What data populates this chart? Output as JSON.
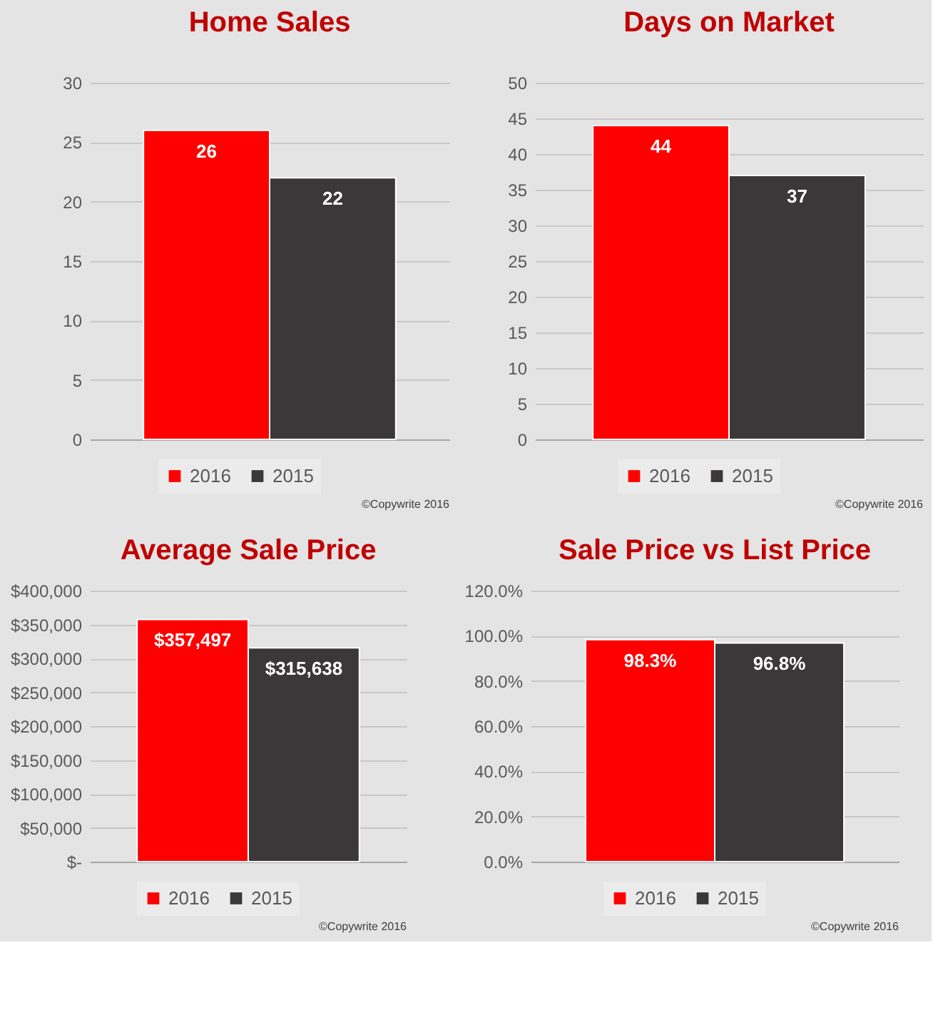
{
  "chart_data": [
    {
      "type": "bar",
      "title": "Home Sales",
      "categories": [
        null
      ],
      "series": [
        {
          "name": "2016",
          "color": "#ff0000",
          "values": [
            26
          ]
        },
        {
          "name": "2015",
          "color": "#3a3838",
          "values": [
            22
          ]
        }
      ],
      "ylim": [
        0,
        30
      ],
      "yticks": [
        0,
        5,
        10,
        15,
        20,
        25,
        30
      ],
      "grid": "y",
      "legend": "bottom",
      "tick_labels": "y",
      "data_labels": true,
      "annotations": [
        "©Copywrite 2016"
      ]
    },
    {
      "type": "bar",
      "title": "Days on Market",
      "categories": [
        null
      ],
      "series": [
        {
          "name": "2016",
          "color": "#ff0000",
          "values": [
            44
          ]
        },
        {
          "name": "2015",
          "color": "#3a3838",
          "values": [
            37
          ]
        }
      ],
      "ylim": [
        0,
        50
      ],
      "yticks": [
        0,
        5,
        10,
        15,
        20,
        25,
        30,
        35,
        40,
        45,
        50
      ],
      "grid": "y",
      "legend": "bottom",
      "tick_labels": "y",
      "data_labels": true,
      "annotations": [
        "©Copywrite 2016"
      ]
    },
    {
      "type": "bar",
      "title": "Average Sale Price",
      "categories": [
        null
      ],
      "series": [
        {
          "name": "2016",
          "color": "#ff0000",
          "values": [
            357497
          ],
          "value_labels": [
            "$357,497"
          ]
        },
        {
          "name": "2015",
          "color": "#3a3838",
          "values": [
            315638
          ],
          "value_labels": [
            "$315,638"
          ]
        }
      ],
      "ylim": [
        0,
        400000
      ],
      "yticks": [
        {
          "value": 0,
          "label": "$-"
        },
        {
          "value": 50000,
          "label": "$50,000"
        },
        {
          "value": 100000,
          "label": "$100,000"
        },
        {
          "value": 150000,
          "label": "$150,000"
        },
        {
          "value": 200000,
          "label": "$200,000"
        },
        {
          "value": 250000,
          "label": "$250,000"
        },
        {
          "value": 300000,
          "label": "$300,000"
        },
        {
          "value": 350000,
          "label": "$350,000"
        },
        {
          "value": 400000,
          "label": "$400,000"
        }
      ],
      "grid": "y",
      "legend": "bottom",
      "tick_labels": "y",
      "annotations": [
        "©Copywrite 2016"
      ]
    },
    {
      "type": "bar",
      "title": "Sale Price vs List Price",
      "categories": [
        null
      ],
      "series": [
        {
          "name": "2016",
          "color": "#ff0000",
          "values": [
            98.3
          ],
          "value_labels": [
            "98.3%"
          ]
        },
        {
          "name": "2015",
          "color": "#3a3838",
          "values": [
            96.8
          ],
          "value_labels": [
            "96.8%"
          ]
        }
      ],
      "ylim": [
        0,
        120
      ],
      "yticks": [
        {
          "value": 0,
          "label": "0.0%"
        },
        {
          "value": 20,
          "label": "20.0%"
        },
        {
          "value": 40,
          "label": "40.0%"
        },
        {
          "value": 60,
          "label": "60.0%"
        },
        {
          "value": 80,
          "label": "80.0%"
        },
        {
          "value": 100,
          "label": "100.0%"
        },
        {
          "value": 120,
          "label": "120.0%"
        }
      ],
      "grid": "y",
      "legend": "bottom",
      "tick_labels": "y",
      "annotations": [
        "©Copywrite 2016"
      ]
    }
  ]
}
